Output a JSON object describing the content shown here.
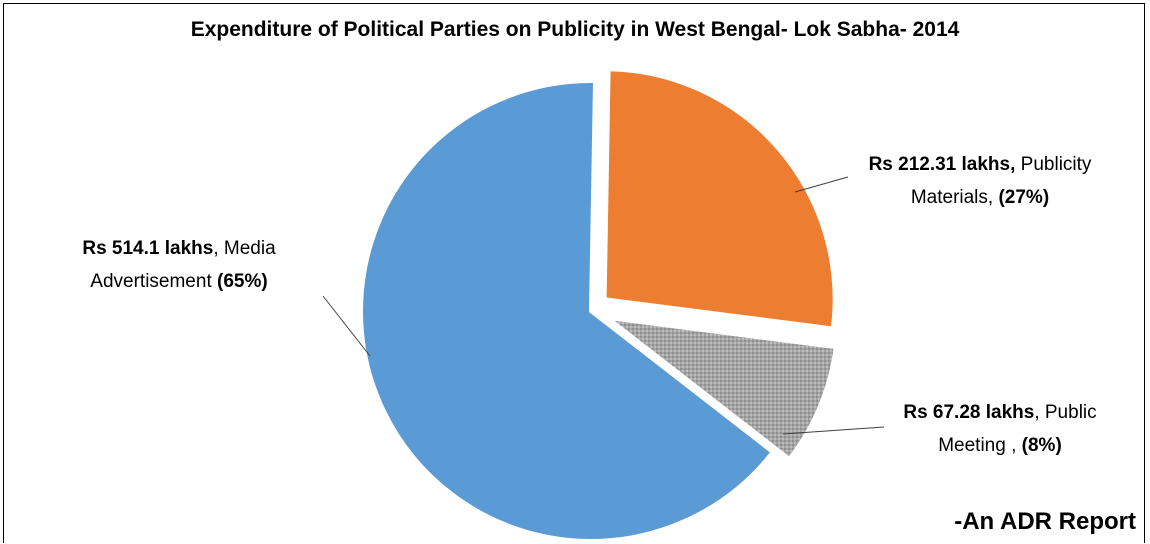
{
  "chart_data": {
    "type": "pie",
    "title": "Expenditure of Political Parties on Publicity in West Bengal- Lok Sabha- 2014",
    "slices": [
      {
        "category": "Media Advertisement",
        "value": 514.1,
        "amount": "Rs 514.1 lakhs",
        "percent": "(65%)",
        "color": "#5b9bd5",
        "exploded": false
      },
      {
        "category": "Publicity Materials",
        "value": 212.31,
        "amount": "Rs 212.31 lakhs,",
        "percent": "(27%)",
        "color": "#ed7d31",
        "exploded": true
      },
      {
        "category": "Public Meeting",
        "value": 67.28,
        "amount": "Rs 67.28 lakhs",
        "percent": "(8%)",
        "color": "#a5a5a5",
        "exploded": true
      }
    ],
    "labels": {
      "media": {
        "amount": "Rs 514.1 lakhs",
        "sep": ", Media",
        "line2": "Advertisement ",
        "percent": "(65%)"
      },
      "pub_materials": {
        "amount": "Rs 212.31 lakhs,",
        "line1_rest": " Publicity",
        "line2": "Materials, ",
        "percent": "(27%)"
      },
      "pub_meeting": {
        "amount": "Rs 67.28 lakhs",
        "line1_rest": ", Public",
        "line2": "Meeting , ",
        "percent": "(8%)"
      }
    },
    "source": "-An ADR Report"
  }
}
